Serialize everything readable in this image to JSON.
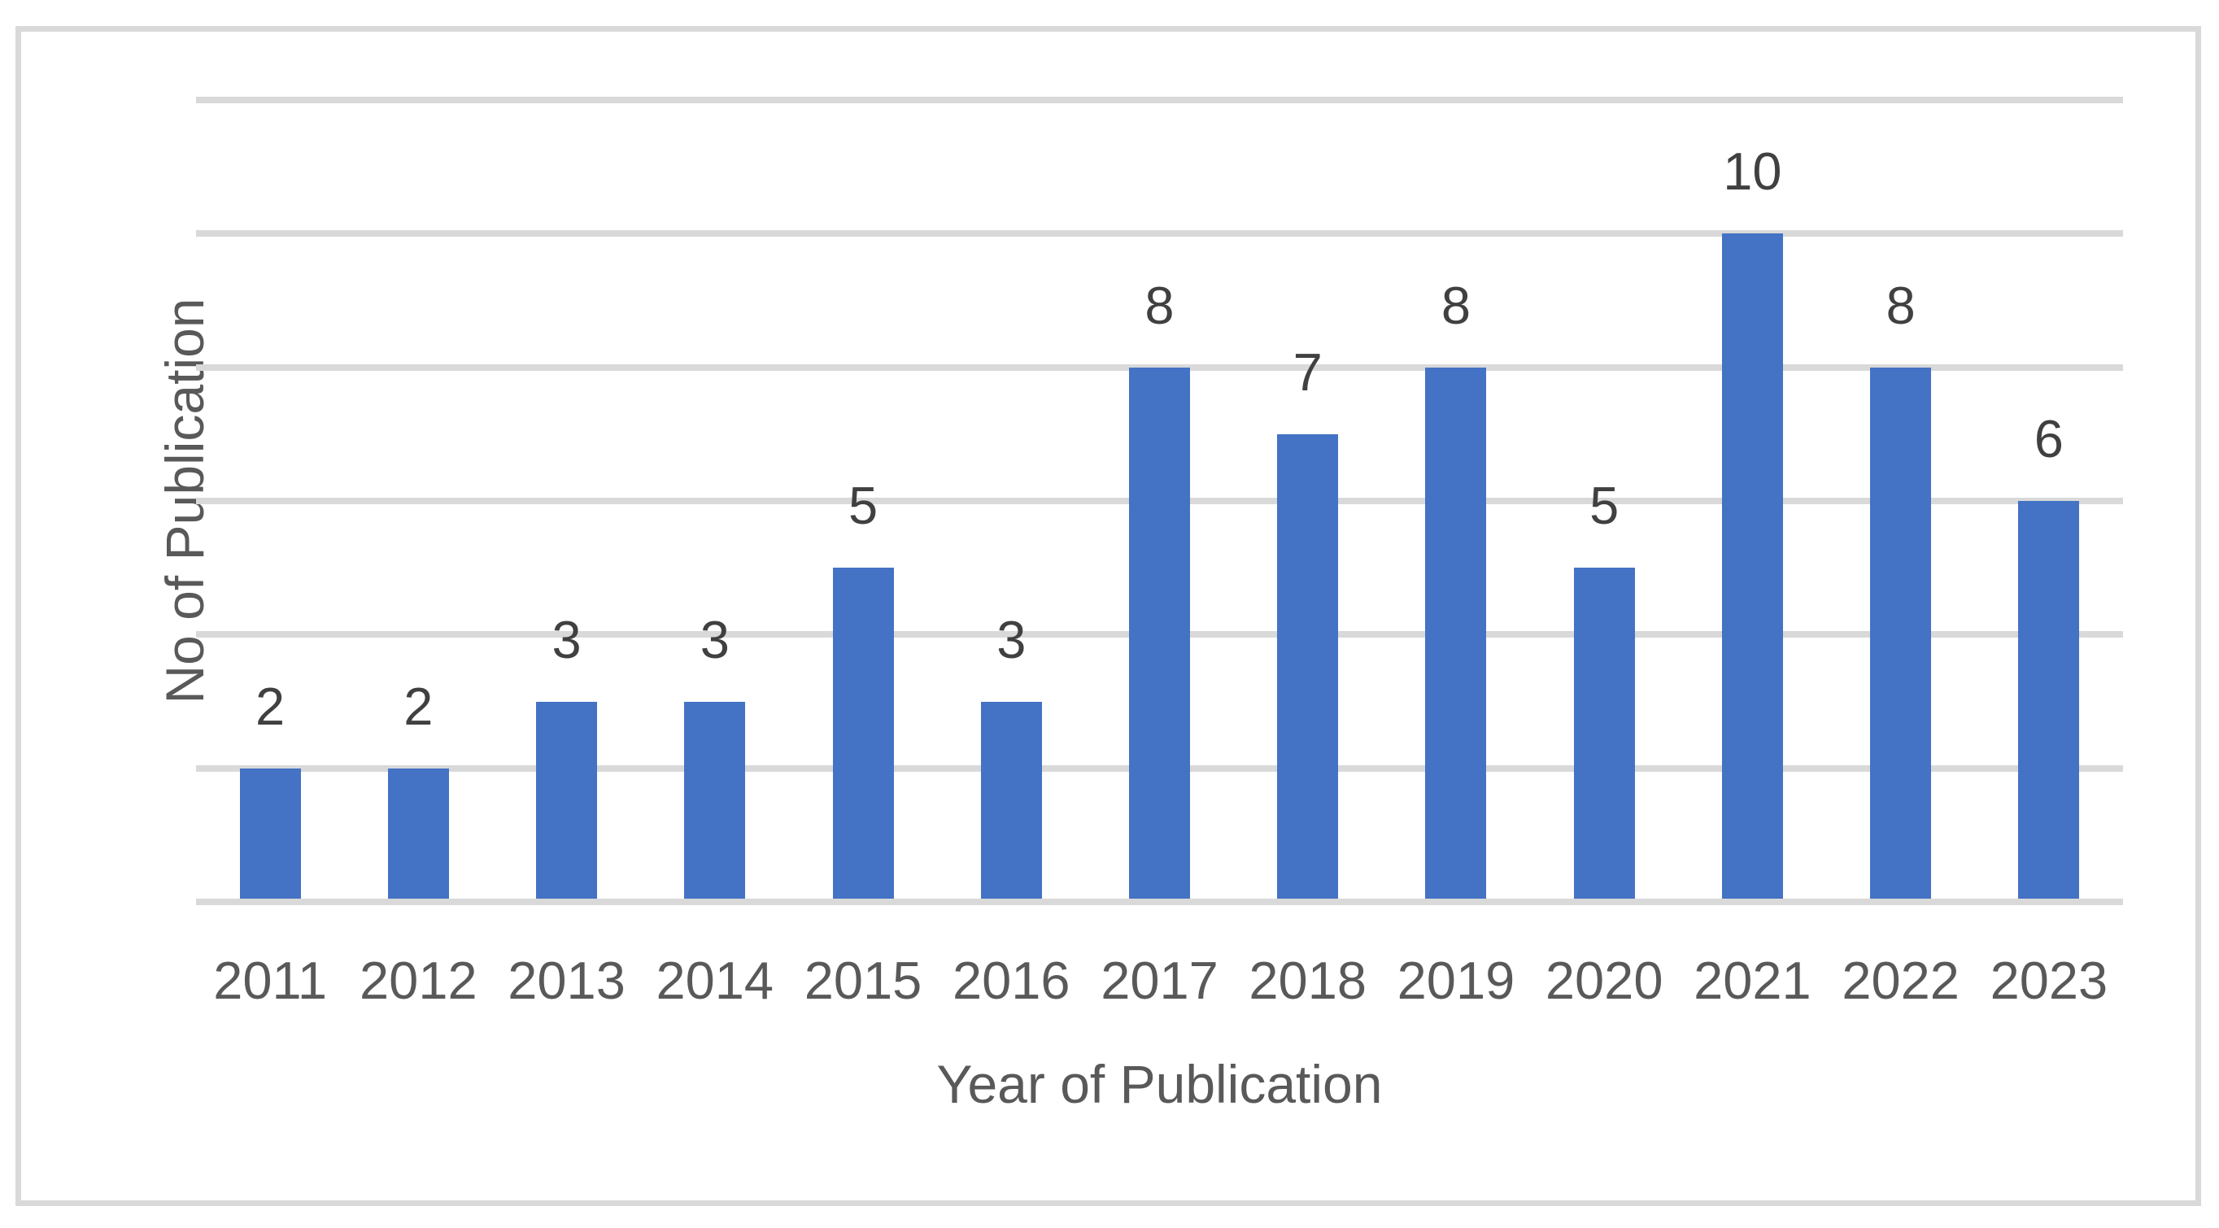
{
  "chart_data": {
    "type": "bar",
    "title": "",
    "categories": [
      "2011",
      "2012",
      "2013",
      "2014",
      "2015",
      "2016",
      "2017",
      "2018",
      "2019",
      "2020",
      "2021",
      "2022",
      "2023"
    ],
    "values": [
      2,
      2,
      3,
      3,
      5,
      3,
      8,
      7,
      8,
      5,
      10,
      8,
      6
    ],
    "data_labels_shown": [
      "2",
      "2",
      "3",
      "3",
      "5",
      "3",
      "8",
      "7",
      "8",
      "5",
      "10",
      "8",
      "6"
    ],
    "xlabel": "Year of Publication",
    "ylabel": "No of Publication",
    "ylim": [
      0,
      12
    ],
    "gridline_step": 2,
    "y_tick_labels_visible": false,
    "grid": "horizontal",
    "legend": false,
    "colors": {
      "bar": "#4472C4",
      "gridline": "#D9D9D9",
      "frame": "#D9D9D9",
      "data_label": "#404040",
      "axis_text": "#595959"
    }
  }
}
